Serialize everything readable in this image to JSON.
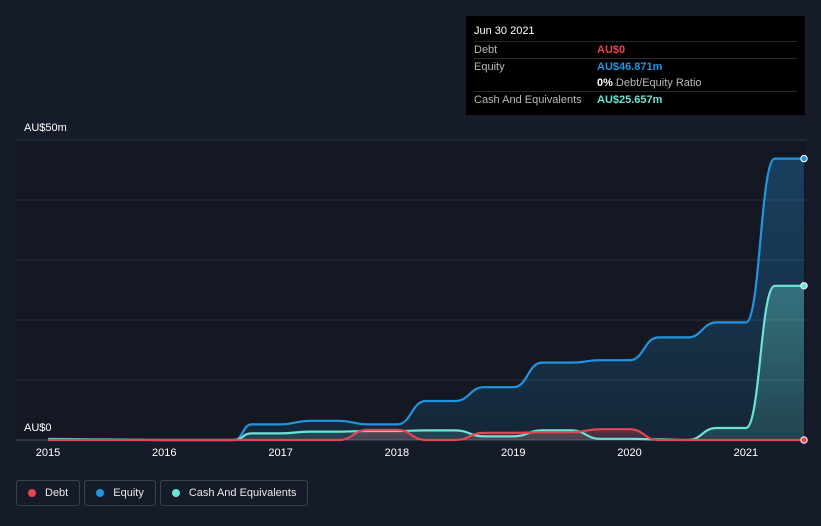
{
  "tooltip": {
    "date": "Jun 30 2021",
    "rows": [
      {
        "label": "Debt",
        "value": "AU$0",
        "color": "#e64552"
      },
      {
        "label": "Equity",
        "value": "AU$46.871m",
        "color": "#2394df"
      }
    ],
    "ratio_pct": "0%",
    "ratio_label": "Debt/Equity Ratio",
    "cash": {
      "label": "Cash And Equivalents",
      "value": "AU$25.657m",
      "color": "#6ce4d5"
    }
  },
  "colors": {
    "background": "#151b28",
    "grid": "#2e3441",
    "debt": "#e64552",
    "equity": "#2394df",
    "cash": "#6ce4d5"
  },
  "legend": [
    {
      "name": "Debt",
      "color": "#e64552"
    },
    {
      "name": "Equity",
      "color": "#2394df"
    },
    {
      "name": "Cash And Equivalents",
      "color": "#6ce4d5"
    }
  ],
  "chart_data": {
    "type": "area",
    "title": "",
    "y_labels": {
      "max": "AU$50m",
      "min": "AU$0"
    },
    "ylim": [
      0,
      50
    ],
    "xlim": [
      2015.0,
      2021.5
    ],
    "x_ticks": [
      "2015",
      "2016",
      "2017",
      "2018",
      "2019",
      "2020",
      "2021"
    ],
    "legend_position": "bottom-left",
    "series": [
      {
        "name": "Equity",
        "key": "equity",
        "x": [
          2015.0,
          2015.5,
          2016.0,
          2016.5,
          2016.6,
          2016.75,
          2017.0,
          2017.25,
          2017.5,
          2017.75,
          2018.0,
          2018.25,
          2018.5,
          2018.75,
          2019.0,
          2019.25,
          2019.5,
          2019.75,
          2020.0,
          2020.25,
          2020.5,
          2020.75,
          2021.0,
          2021.25,
          2021.5
        ],
        "values": [
          0.2,
          0.1,
          0.0,
          0.0,
          0.0,
          2.6,
          2.6,
          3.2,
          3.2,
          2.6,
          2.6,
          6.5,
          6.5,
          8.8,
          8.8,
          12.9,
          12.9,
          13.3,
          13.3,
          17.1,
          17.1,
          19.6,
          19.6,
          46.9,
          46.9
        ]
      },
      {
        "name": "Cash And Equivalents",
        "key": "cash",
        "x": [
          2015.0,
          2015.5,
          2016.0,
          2016.5,
          2016.6,
          2016.75,
          2017.0,
          2017.25,
          2017.5,
          2017.75,
          2018.0,
          2018.25,
          2018.5,
          2018.75,
          2019.0,
          2019.25,
          2019.5,
          2019.75,
          2020.0,
          2020.25,
          2020.5,
          2020.75,
          2021.0,
          2021.25,
          2021.5
        ],
        "values": [
          0.1,
          0.05,
          0.0,
          0.0,
          0.0,
          1.1,
          1.1,
          1.4,
          1.4,
          1.5,
          1.5,
          1.6,
          1.6,
          0.6,
          0.6,
          1.6,
          1.6,
          0.2,
          0.2,
          0.1,
          0.0,
          2.0,
          2.0,
          25.7,
          25.7
        ]
      },
      {
        "name": "Debt",
        "key": "debt",
        "x": [
          2015.0,
          2016.0,
          2017.0,
          2017.5,
          2017.75,
          2018.0,
          2018.25,
          2018.5,
          2018.75,
          2019.0,
          2019.25,
          2019.5,
          2019.75,
          2020.0,
          2020.25,
          2020.5,
          2021.0,
          2021.5
        ],
        "values": [
          0.0,
          0.0,
          0.0,
          0.0,
          1.7,
          1.7,
          0.0,
          0.0,
          1.2,
          1.2,
          1.3,
          1.3,
          1.8,
          1.8,
          0.0,
          0.0,
          0.0,
          0.0
        ]
      }
    ]
  }
}
